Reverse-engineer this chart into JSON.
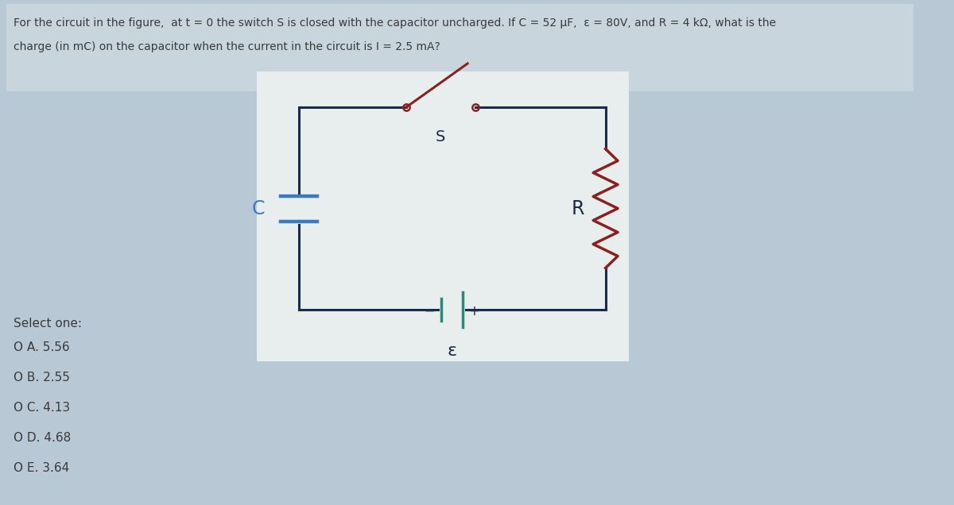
{
  "bg_color": "#b8c8d4",
  "top_panel_color": "#c8d5dc",
  "circuit_bg": "#f0f0f0",
  "title_line1": "For the circuit in the figure,  at t = 0 the switch S is closed with the capacitor uncharged. If C = 52 μF,  ε = 80V, and R = 4 kΩ, what is the",
  "title_line2": "charge (in mC) on the capacitor when the current in the circuit is I = 2.5 mA?",
  "select_label": "Select one:",
  "options": [
    "O A. 5.56",
    "O B. 2.55",
    "O C. 4.13",
    "O D. 4.68",
    "O E. 3.64"
  ],
  "text_color": "#3a3a3a",
  "circuit_line_color": "#1a2a4a",
  "cap_color": "#3a7bbf",
  "switch_color": "#8b2020",
  "resistor_color": "#8b2020",
  "battery_color": "#2a8a7a",
  "label_color": "#1a2a4a"
}
